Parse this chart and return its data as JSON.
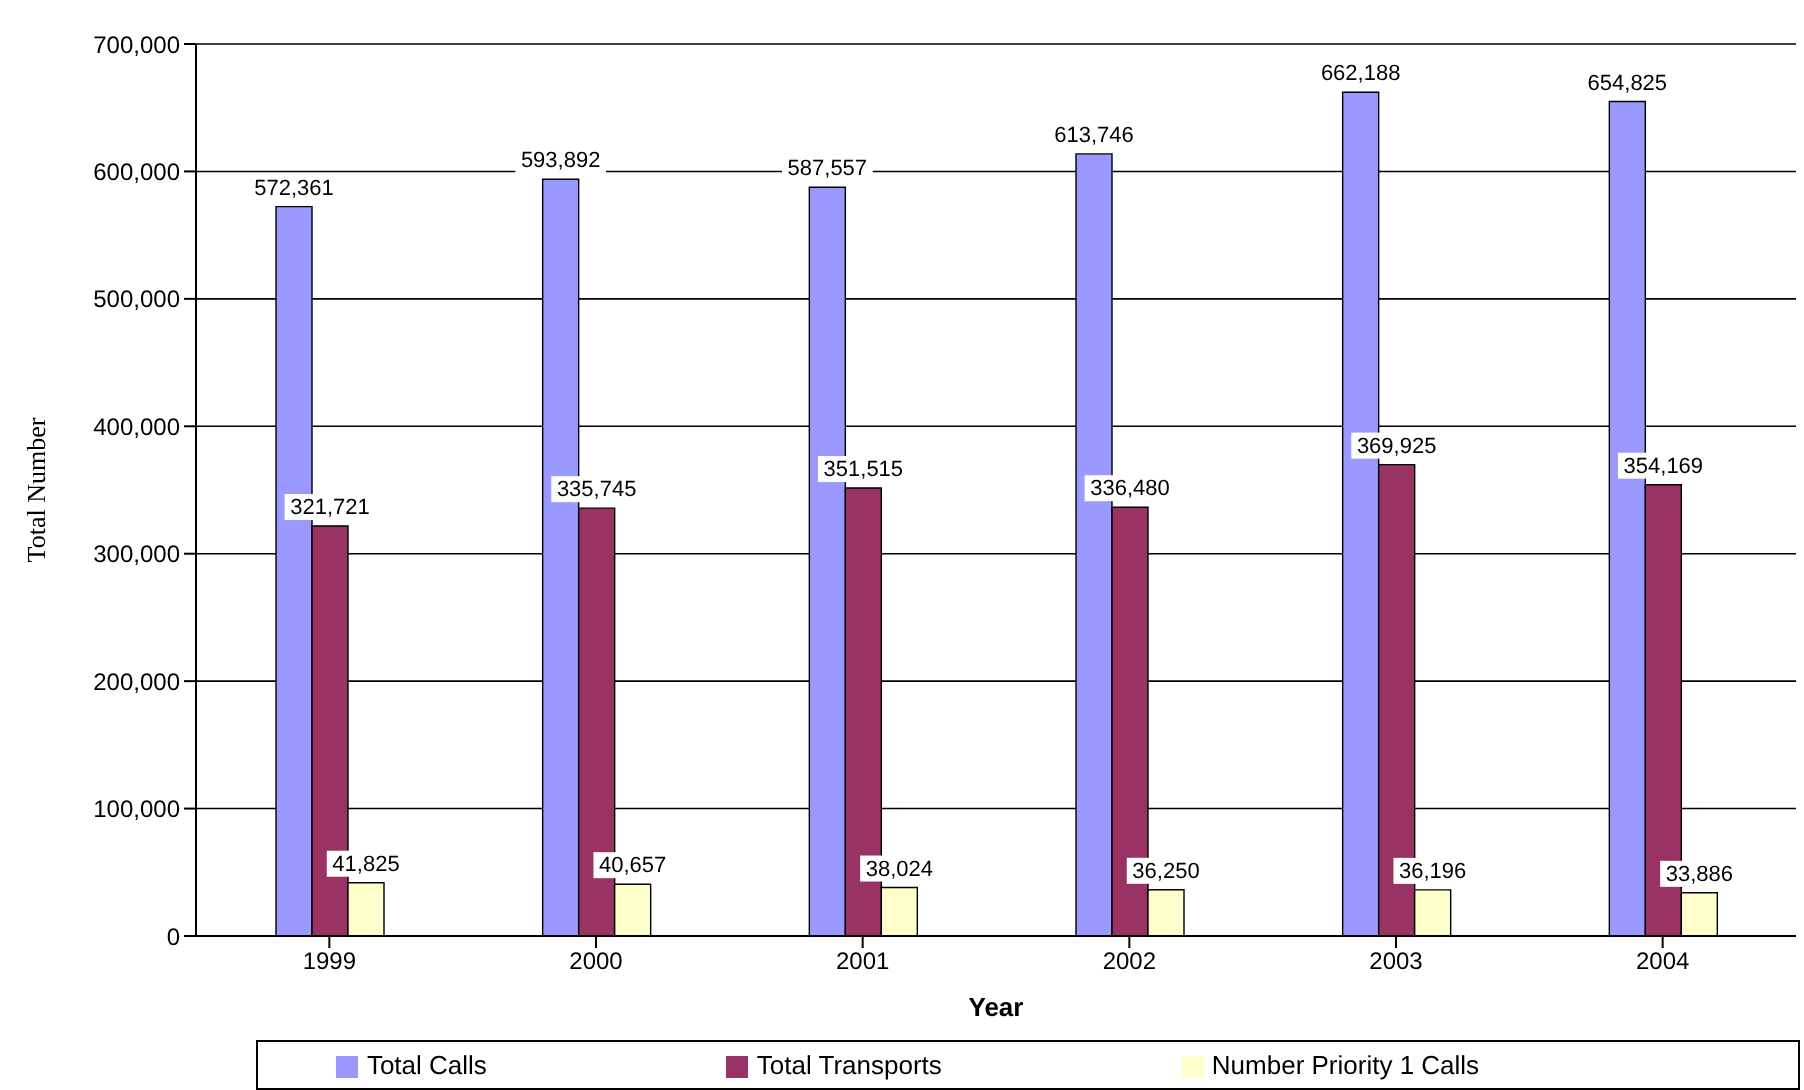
{
  "chart_data": {
    "type": "bar",
    "xlabel": "Year",
    "ylabel": "Total Number",
    "categories": [
      "1999",
      "2000",
      "2001",
      "2002",
      "2003",
      "2004"
    ],
    "series": [
      {
        "name": "Total Calls",
        "color": "#9999ff",
        "values": [
          572361,
          593892,
          587557,
          613746,
          662188,
          654825
        ],
        "value_labels": [
          "572,361",
          "593,892",
          "587,557",
          "613,746",
          "662,188",
          "654,825"
        ]
      },
      {
        "name": "Total Transports",
        "color": "#993366",
        "values": [
          321721,
          335745,
          351515,
          336480,
          369925,
          354169
        ],
        "value_labels": [
          "321,721",
          "335,745",
          "351,515",
          "336,480",
          "369,925",
          "354,169"
        ]
      },
      {
        "name": "Number Priority 1 Calls",
        "color": "#ffffcc",
        "values": [
          41825,
          40657,
          38024,
          36250,
          36196,
          33886
        ],
        "value_labels": [
          "41,825",
          "40,657",
          "38,024",
          "36,250",
          "36,196",
          "33,886"
        ]
      }
    ],
    "ylim": [
      0,
      700000
    ],
    "yticks": [
      {
        "value": 0,
        "label": "0"
      },
      {
        "value": 100000,
        "label": "100,000"
      },
      {
        "value": 200000,
        "label": "200,000"
      },
      {
        "value": 300000,
        "label": "300,000"
      },
      {
        "value": 400000,
        "label": "400,000"
      },
      {
        "value": 500000,
        "label": "500,000"
      },
      {
        "value": 600000,
        "label": "600,000"
      },
      {
        "value": 700000,
        "label": "700,000"
      }
    ],
    "grid": "y",
    "legend": "bottom"
  }
}
